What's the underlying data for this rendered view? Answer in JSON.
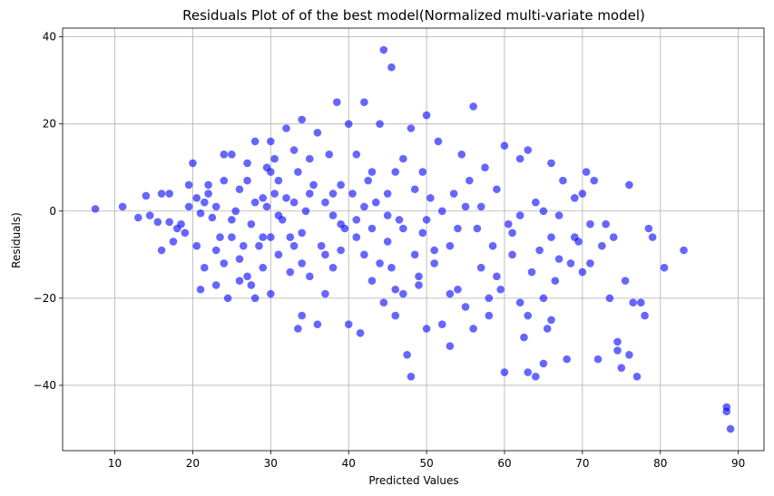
{
  "chart_data": {
    "type": "scatter",
    "title": "Residuals Plot of of the best model(Normalized multi-variate model)",
    "xlabel": "Predicted Values",
    "ylabel": "Residuals)",
    "xlim": [
      3.3,
      93.3
    ],
    "ylim": [
      -55,
      42
    ],
    "xticks": [
      10,
      20,
      30,
      40,
      50,
      60,
      70,
      80,
      90
    ],
    "yticks": [
      -40,
      -20,
      0,
      20,
      40
    ],
    "xtick_labels": [
      "10",
      "20",
      "30",
      "40",
      "50",
      "60",
      "70",
      "80",
      "90"
    ],
    "ytick_labels": [
      "−40",
      "−20",
      "0",
      "20",
      "40"
    ],
    "grid": true,
    "series": [
      {
        "color": "#0000ff",
        "points": [
          [
            7.5,
            0.5
          ],
          [
            11,
            1
          ],
          [
            13,
            -1.5
          ],
          [
            14,
            3.5
          ],
          [
            14.5,
            -1
          ],
          [
            15.5,
            -2.5
          ],
          [
            16,
            -9
          ],
          [
            16,
            4
          ],
          [
            17,
            4
          ],
          [
            17,
            -2.5
          ],
          [
            17.5,
            -7
          ],
          [
            18,
            -4
          ],
          [
            18.5,
            -3
          ],
          [
            19,
            -5
          ],
          [
            19.5,
            6
          ],
          [
            19.5,
            1
          ],
          [
            20,
            11
          ],
          [
            20.5,
            3
          ],
          [
            20.5,
            -8
          ],
          [
            21,
            -18
          ],
          [
            21.5,
            -13
          ],
          [
            21.5,
            2
          ],
          [
            22,
            4
          ],
          [
            22,
            6
          ],
          [
            22.5,
            -1.5
          ],
          [
            23,
            -17
          ],
          [
            23,
            -9
          ],
          [
            23.5,
            -6
          ],
          [
            24,
            13
          ],
          [
            24,
            7
          ],
          [
            24,
            -12
          ],
          [
            24.5,
            -20
          ],
          [
            25,
            -2
          ],
          [
            25,
            13
          ],
          [
            25.5,
            0
          ],
          [
            26,
            5
          ],
          [
            26,
            -11
          ],
          [
            26.5,
            -8
          ],
          [
            27,
            7
          ],
          [
            27,
            -15
          ],
          [
            27.5,
            -3
          ],
          [
            27.5,
            -17
          ],
          [
            28,
            16
          ],
          [
            28,
            2
          ],
          [
            28,
            -20
          ],
          [
            28.5,
            -8
          ],
          [
            29,
            -6
          ],
          [
            29,
            -13
          ],
          [
            29.5,
            10
          ],
          [
            29.5,
            1
          ],
          [
            30,
            16
          ],
          [
            30,
            -6
          ],
          [
            30,
            -19
          ],
          [
            30.5,
            4
          ],
          [
            30.5,
            12
          ],
          [
            31,
            -10
          ],
          [
            31,
            7
          ],
          [
            31.5,
            -2
          ],
          [
            32,
            19
          ],
          [
            32,
            3
          ],
          [
            32.5,
            -14
          ],
          [
            32.5,
            -6
          ],
          [
            33,
            2
          ],
          [
            33,
            14
          ],
          [
            33.5,
            -27
          ],
          [
            33.5,
            9
          ],
          [
            34,
            21
          ],
          [
            34,
            -24
          ],
          [
            34,
            -5
          ],
          [
            34.5,
            0
          ],
          [
            35,
            12
          ],
          [
            35,
            -15
          ],
          [
            35.5,
            6
          ],
          [
            36,
            -26
          ],
          [
            36,
            18
          ],
          [
            36.5,
            -8
          ],
          [
            37,
            2
          ],
          [
            37,
            -19
          ],
          [
            37.5,
            13
          ],
          [
            38,
            -1
          ],
          [
            38,
            -13
          ],
          [
            38.5,
            25
          ],
          [
            39,
            6
          ],
          [
            39,
            -9
          ],
          [
            39.5,
            -4
          ],
          [
            40,
            20
          ],
          [
            40,
            -26
          ],
          [
            40.5,
            4
          ],
          [
            41,
            13
          ],
          [
            41,
            -2
          ],
          [
            41.5,
            -28
          ],
          [
            42,
            25
          ],
          [
            42,
            -10
          ],
          [
            42.5,
            7
          ],
          [
            43,
            -4
          ],
          [
            43,
            -16
          ],
          [
            43.5,
            2
          ],
          [
            44,
            20
          ],
          [
            44,
            -12
          ],
          [
            44.5,
            37
          ],
          [
            44.5,
            -21
          ],
          [
            45,
            4
          ],
          [
            45,
            -7
          ],
          [
            45.5,
            33
          ],
          [
            45.5,
            -13
          ],
          [
            46,
            9
          ],
          [
            46,
            -24
          ],
          [
            46.5,
            -2
          ],
          [
            47,
            12
          ],
          [
            47,
            -19
          ],
          [
            47.5,
            -33
          ],
          [
            48,
            -38
          ],
          [
            48,
            19
          ],
          [
            48.5,
            5
          ],
          [
            48.5,
            -10
          ],
          [
            49,
            -15
          ],
          [
            49.5,
            9
          ],
          [
            49.5,
            -5
          ],
          [
            50,
            22
          ],
          [
            50,
            -27
          ],
          [
            50.5,
            3
          ],
          [
            51,
            -12
          ],
          [
            51.5,
            16
          ],
          [
            52,
            -26
          ],
          [
            52,
            0
          ],
          [
            53,
            -8
          ],
          [
            53,
            -31
          ],
          [
            53.5,
            4
          ],
          [
            54,
            -18
          ],
          [
            54.5,
            13
          ],
          [
            55,
            -22
          ],
          [
            55.5,
            7
          ],
          [
            56,
            24
          ],
          [
            56,
            -27
          ],
          [
            56.5,
            -4
          ],
          [
            57,
            -13
          ],
          [
            57.5,
            10
          ],
          [
            58,
            -24
          ],
          [
            58.5,
            -8
          ],
          [
            59,
            5
          ],
          [
            59.5,
            -18
          ],
          [
            60,
            -37
          ],
          [
            60,
            15
          ],
          [
            60.5,
            -3
          ],
          [
            61,
            -10
          ],
          [
            62,
            12
          ],
          [
            62,
            -21
          ],
          [
            62.5,
            -29
          ],
          [
            63,
            14
          ],
          [
            63,
            -37
          ],
          [
            63.5,
            -14
          ],
          [
            64,
            2
          ],
          [
            64,
            -38
          ],
          [
            64.5,
            -9
          ],
          [
            65,
            -35
          ],
          [
            65,
            -20
          ],
          [
            65.5,
            -27
          ],
          [
            66,
            11
          ],
          [
            66,
            -6
          ],
          [
            66.5,
            -16
          ],
          [
            67,
            -1
          ],
          [
            67.5,
            7
          ],
          [
            68,
            -34
          ],
          [
            68.5,
            -12
          ],
          [
            69,
            3
          ],
          [
            69.5,
            -7
          ],
          [
            70,
            -14
          ],
          [
            70.5,
            9
          ],
          [
            71,
            -3
          ],
          [
            71.5,
            7
          ],
          [
            72,
            -34
          ],
          [
            72.5,
            -8
          ],
          [
            73.5,
            -20
          ],
          [
            74,
            -6
          ],
          [
            74.5,
            -32
          ],
          [
            74.5,
            -30
          ],
          [
            75,
            -36
          ],
          [
            75.5,
            -16
          ],
          [
            76,
            -33
          ],
          [
            76,
            6
          ],
          [
            76.5,
            -21
          ],
          [
            77,
            -38
          ],
          [
            77.5,
            -21
          ],
          [
            78,
            -24
          ],
          [
            78.5,
            -4
          ],
          [
            79,
            -6
          ],
          [
            80.5,
            -13
          ],
          [
            83,
            -9
          ],
          [
            88.5,
            -45
          ],
          [
            88.5,
            -46
          ],
          [
            89,
            -50
          ],
          [
            21,
            -0.5
          ],
          [
            25,
            -6
          ],
          [
            29,
            3
          ],
          [
            33,
            -8
          ],
          [
            37,
            -10
          ],
          [
            41,
            -6
          ],
          [
            45,
            -1
          ],
          [
            49,
            -17
          ],
          [
            53,
            -19
          ],
          [
            57,
            1
          ],
          [
            61,
            -5
          ],
          [
            65,
            0
          ],
          [
            69,
            -6
          ],
          [
            73,
            -3
          ],
          [
            27,
            11
          ],
          [
            31,
            -1
          ],
          [
            35,
            4
          ],
          [
            39,
            -3
          ],
          [
            43,
            9
          ],
          [
            47,
            -4
          ],
          [
            51,
            -9
          ],
          [
            55,
            1
          ],
          [
            59,
            -15
          ],
          [
            63,
            -24
          ],
          [
            67,
            -11
          ],
          [
            71,
            -12
          ],
          [
            23,
            1
          ],
          [
            26,
            -16
          ],
          [
            30,
            9
          ],
          [
            34,
            -12
          ],
          [
            38,
            4
          ],
          [
            42,
            1
          ],
          [
            46,
            -18
          ],
          [
            50,
            -2
          ],
          [
            54,
            -4
          ],
          [
            58,
            -20
          ],
          [
            62,
            -1
          ],
          [
            66,
            -25
          ],
          [
            70,
            4
          ]
        ]
      }
    ]
  }
}
